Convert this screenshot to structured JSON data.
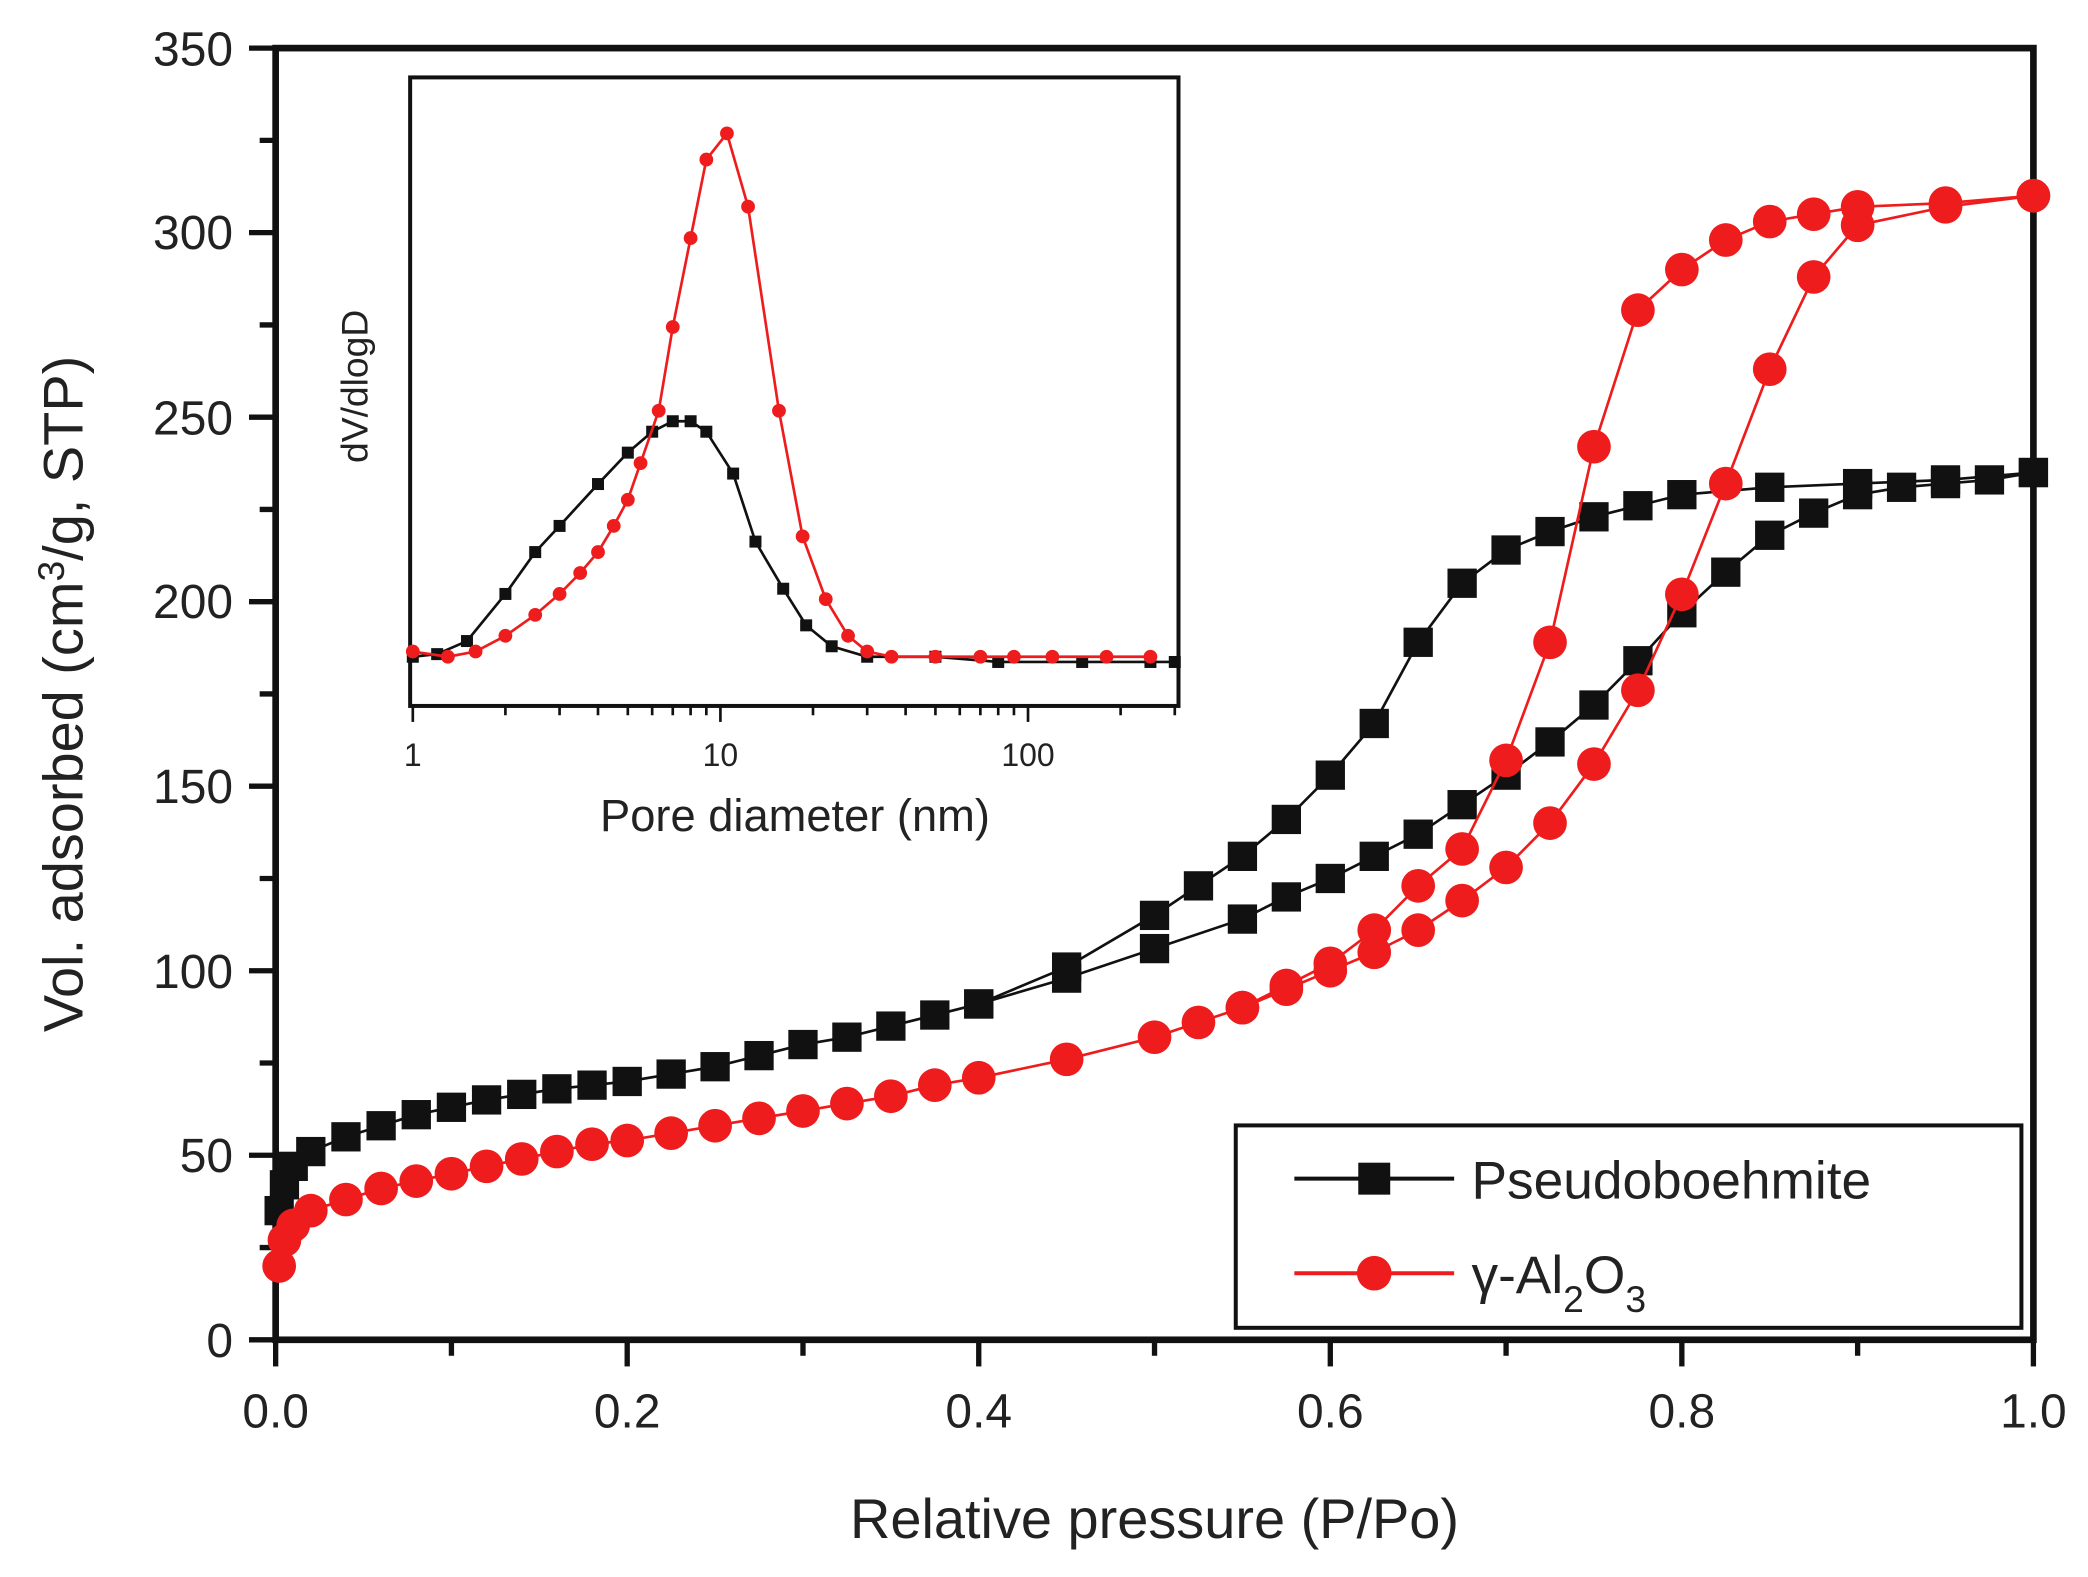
{
  "chart_data": [
    {
      "type": "scatter",
      "title": "",
      "xlabel": "Relative pressure (P/Po)",
      "ylabel": "Vol. adsorbed (cm3/g, STP)",
      "ylabel_parts": {
        "pre": "Vol. adsorbed (cm",
        "sup": "3",
        "post": "/g, STP)"
      },
      "xlim": [
        0,
        1.0
      ],
      "ylim": [
        0,
        350
      ],
      "xticks": [
        "0.0",
        "0.2",
        "0.4",
        "0.6",
        "0.8",
        "1.0"
      ],
      "yticks": [
        "0",
        "50",
        "100",
        "150",
        "200",
        "250",
        "300",
        "350"
      ],
      "grid": false,
      "legend": {
        "placement": "bottom-right",
        "entries": [
          "Pseudoboehmite",
          "γ-Al2O3"
        ],
        "al2o3_parts": {
          "pre": "γ-Al",
          "sub1": "2",
          "mid": "O",
          "sub2": "3"
        }
      },
      "series": [
        {
          "name": "Pseudoboehmite",
          "branch": "adsorption",
          "color": "#111111",
          "marker": "square",
          "x": [
            0.002,
            0.005,
            0.01,
            0.02,
            0.04,
            0.06,
            0.08,
            0.1,
            0.12,
            0.14,
            0.16,
            0.18,
            0.2,
            0.225,
            0.25,
            0.275,
            0.3,
            0.325,
            0.35,
            0.375,
            0.4,
            0.45,
            0.5,
            0.55,
            0.575,
            0.6,
            0.625,
            0.65,
            0.675,
            0.7,
            0.725,
            0.75,
            0.775,
            0.8,
            0.825,
            0.85,
            0.875,
            0.9,
            0.925,
            0.95,
            0.975,
            1.0
          ],
          "y": [
            35,
            42,
            47,
            51,
            55,
            58,
            61,
            63,
            65,
            66.5,
            68,
            69,
            70,
            72,
            74,
            77,
            80,
            82,
            85,
            88,
            91,
            98,
            106,
            114,
            120,
            125,
            131,
            137,
            145,
            153,
            162,
            172,
            184,
            197,
            208,
            218,
            224,
            229,
            231,
            232,
            233,
            235
          ]
        },
        {
          "name": "Pseudoboehmite",
          "branch": "desorption",
          "color": "#111111",
          "marker": "square",
          "x": [
            1.0,
            0.95,
            0.9,
            0.85,
            0.8,
            0.775,
            0.75,
            0.725,
            0.7,
            0.675,
            0.65,
            0.625,
            0.6,
            0.575,
            0.55,
            0.525,
            0.5,
            0.45,
            0.4
          ],
          "y": [
            235,
            233,
            232,
            231,
            229,
            226,
            223,
            219,
            214,
            205,
            189,
            167,
            153,
            141,
            131,
            123,
            115,
            101,
            91
          ]
        },
        {
          "name": "γ-Al2O3",
          "branch": "adsorption",
          "color": "#ee1c1c",
          "marker": "circle",
          "x": [
            0.002,
            0.005,
            0.01,
            0.02,
            0.04,
            0.06,
            0.08,
            0.1,
            0.12,
            0.14,
            0.16,
            0.18,
            0.2,
            0.225,
            0.25,
            0.275,
            0.3,
            0.325,
            0.35,
            0.375,
            0.4,
            0.45,
            0.5,
            0.525,
            0.55,
            0.575,
            0.6,
            0.625,
            0.65,
            0.675,
            0.7,
            0.725,
            0.75,
            0.775,
            0.8,
            0.825,
            0.85,
            0.875,
            0.9,
            0.95,
            1.0
          ],
          "y": [
            20,
            27,
            31,
            35,
            38,
            41,
            43,
            45,
            47,
            49,
            51,
            53,
            54,
            56,
            58,
            60,
            62,
            64,
            66,
            69,
            71,
            76,
            82,
            86,
            90,
            95,
            100,
            105,
            111,
            119,
            128,
            140,
            156,
            176,
            202,
            232,
            263,
            288,
            302,
            307,
            310
          ]
        },
        {
          "name": "γ-Al2O3",
          "branch": "desorption",
          "color": "#ee1c1c",
          "marker": "circle",
          "x": [
            1.0,
            0.95,
            0.9,
            0.875,
            0.85,
            0.825,
            0.8,
            0.775,
            0.75,
            0.725,
            0.7,
            0.675,
            0.65,
            0.625,
            0.6,
            0.575,
            0.55
          ],
          "y": [
            310,
            308,
            307,
            305,
            303,
            298,
            290,
            279,
            242,
            189,
            157,
            133,
            123,
            111,
            102,
            96,
            90
          ]
        }
      ]
    },
    {
      "type": "line",
      "title": "",
      "xlabel": "Pore diameter (nm)",
      "ylabel": "dV/dlogD",
      "xscale": "log",
      "xlim": [
        1,
        300
      ],
      "ylim": [
        -0.094,
        1.107
      ],
      "xticks": [
        "1",
        "10",
        "100"
      ],
      "yticks": [],
      "series": [
        {
          "name": "Pseudoboehmite",
          "color": "#111111",
          "marker": "square",
          "x": [
            1,
            1.2,
            1.5,
            2,
            2.5,
            3,
            4,
            5,
            6,
            7,
            8,
            9,
            11,
            13,
            16,
            19,
            23,
            30,
            50,
            80,
            150,
            250,
            300
          ],
          "y": [
            0,
            0.005,
            0.03,
            0.12,
            0.2,
            0.25,
            0.33,
            0.39,
            0.43,
            0.45,
            0.45,
            0.43,
            0.35,
            0.22,
            0.13,
            0.06,
            0.02,
            0,
            0,
            -0.01,
            -0.01,
            -0.01,
            -0.01
          ]
        },
        {
          "name": "γ-Al2O3",
          "color": "#ee1c1c",
          "marker": "circle",
          "x": [
            1,
            1.3,
            1.6,
            2,
            2.5,
            3,
            3.5,
            4,
            4.5,
            5,
            5.5,
            6.3,
            7,
            8,
            9,
            10.5,
            12.3,
            15.5,
            18.5,
            22,
            26,
            30,
            36,
            50,
            70,
            90,
            120,
            180,
            250
          ],
          "y": [
            0.01,
            0,
            0.01,
            0.04,
            0.08,
            0.12,
            0.16,
            0.2,
            0.25,
            0.3,
            0.37,
            0.47,
            0.63,
            0.8,
            0.95,
            1.0,
            0.86,
            0.47,
            0.23,
            0.11,
            0.04,
            0.01,
            0,
            0,
            0,
            0,
            0,
            0,
            0
          ]
        }
      ]
    }
  ]
}
